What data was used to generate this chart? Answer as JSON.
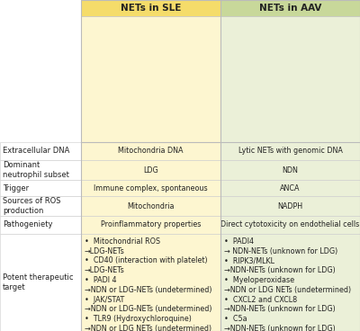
{
  "title_sle": "NETs in SLE",
  "title_aav": "NETs in AAV",
  "sle_header_color": "#F5DC6A",
  "aav_header_color": "#C8D89A",
  "row_bg_sle": "#FDF6D0",
  "row_bg_aav": "#EBF0D8",
  "white_bg": "#FFFFFF",
  "border_color": "#BBBBBB",
  "divider_color": "#CCCCCC",
  "text_color": "#222222",
  "row_labels": [
    "Extracellular DNA",
    "Dominant\nneutrophil subset",
    "Trigger",
    "Sources of ROS\nproduction",
    "Pathogeniety",
    "Potent therapeutic\ntarget"
  ],
  "sle_values": [
    "Mitochondria DNA",
    "LDG",
    "Immune complex, spontaneous",
    "Mitochondria",
    "Proinflammatory properties",
    "•  Mitochondrial ROS\n→LDG-NETs\n•  CD40 (interaction with platelet)\n→LDG-NETs\n•  PADI 4\n→NDN or LDG-NETs (undetermined)\n•  JAK/STAT\n→NDN or LDG-NETs (undetermined)\n•  TLR9 (Hydroxychloroquine)\n→NDN or LDG NETs (undetermined)"
  ],
  "aav_values": [
    "Lytic NETs with genomic DNA",
    "NDN",
    "ANCA",
    "NADPH",
    "Direct cytotoxicity on endothelial cells",
    "•  PADI4\n→ NDN-NETs (unknown for LDG)\n•  RIPK3/MLKL\n→NDN-NETs (unknown for LDG)\n•  Myeloperoxidase\n→NDN or LDG NETs (undetermined)\n•  CXCL2 and CXCL8\n→NDN-NETs (unknown for LDG)\n•  C5a\n→NDN-NETs (unknown for LDG)"
  ],
  "font_size_header": 7.5,
  "font_size_label": 6.0,
  "font_size_value": 5.8,
  "fig_w": 4.0,
  "fig_h": 3.68,
  "dpi": 100
}
